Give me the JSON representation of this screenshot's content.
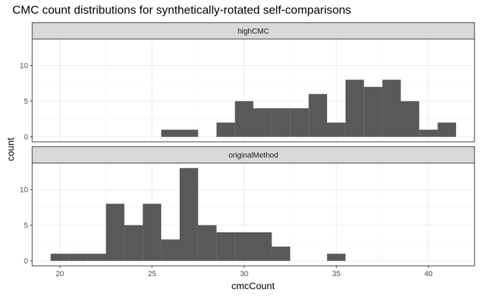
{
  "chart_data": {
    "type": "bar",
    "title": "CMC count distributions for synthetically-rotated self-comparisons",
    "xlabel": "cmcCount",
    "ylabel": "count",
    "x_ticks": [
      20,
      25,
      30,
      35,
      40
    ],
    "y_ticks": [
      0,
      5,
      10
    ],
    "xlim": [
      18.5,
      42.5
    ],
    "ylim": [
      -0.7,
      13.7
    ],
    "bin_width": 1,
    "grid": true,
    "bar_color": "#595959",
    "panels": [
      {
        "name": "highCMC",
        "bins": [
          {
            "x": 26,
            "count": 1
          },
          {
            "x": 27,
            "count": 1
          },
          {
            "x": 29,
            "count": 2
          },
          {
            "x": 30,
            "count": 5
          },
          {
            "x": 31,
            "count": 4
          },
          {
            "x": 32,
            "count": 4
          },
          {
            "x": 33,
            "count": 4
          },
          {
            "x": 34,
            "count": 6
          },
          {
            "x": 35,
            "count": 2
          },
          {
            "x": 36,
            "count": 8
          },
          {
            "x": 37,
            "count": 7
          },
          {
            "x": 38,
            "count": 8
          },
          {
            "x": 39,
            "count": 5
          },
          {
            "x": 40,
            "count": 1
          },
          {
            "x": 41,
            "count": 2
          }
        ]
      },
      {
        "name": "originalMethod",
        "bins": [
          {
            "x": 20,
            "count": 1
          },
          {
            "x": 21,
            "count": 1
          },
          {
            "x": 22,
            "count": 1
          },
          {
            "x": 23,
            "count": 8
          },
          {
            "x": 24,
            "count": 5
          },
          {
            "x": 25,
            "count": 8
          },
          {
            "x": 26,
            "count": 3
          },
          {
            "x": 27,
            "count": 13
          },
          {
            "x": 28,
            "count": 5
          },
          {
            "x": 29,
            "count": 4
          },
          {
            "x": 30,
            "count": 4
          },
          {
            "x": 31,
            "count": 4
          },
          {
            "x": 32,
            "count": 2
          },
          {
            "x": 35,
            "count": 1
          }
        ]
      }
    ]
  }
}
